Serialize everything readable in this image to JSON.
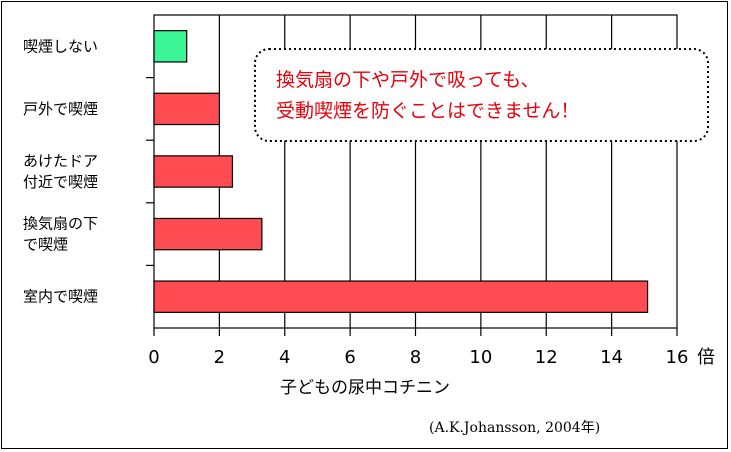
{
  "chart_data": {
    "type": "bar",
    "orientation": "horizontal",
    "categories": [
      [
        "喫煙しない"
      ],
      [
        "戸外で喫煙"
      ],
      [
        "あけたドア",
        "付近で喫煙"
      ],
      [
        "換気扇の下",
        "で喫煙"
      ],
      [
        "室内で喫煙"
      ]
    ],
    "values": [
      1.0,
      2.0,
      2.4,
      3.3,
      15.1
    ],
    "bar_colors": [
      "#3cf596",
      "#ff4b52",
      "#ff4b52",
      "#ff4b52",
      "#ff4b52"
    ],
    "xlim": [
      0,
      16
    ],
    "xticks": [
      0,
      2,
      4,
      6,
      8,
      10,
      12,
      14,
      16
    ],
    "unit": "倍",
    "xlabel": "子どもの尿中コチニン",
    "grid": "vertical",
    "annotation": [
      "換気扇の下や戸外で吸っても、",
      "受動喫煙を防ぐことはできません！"
    ],
    "annotation_color": "#e8000a",
    "source": "(A.K.Johansson, 2004年)"
  }
}
